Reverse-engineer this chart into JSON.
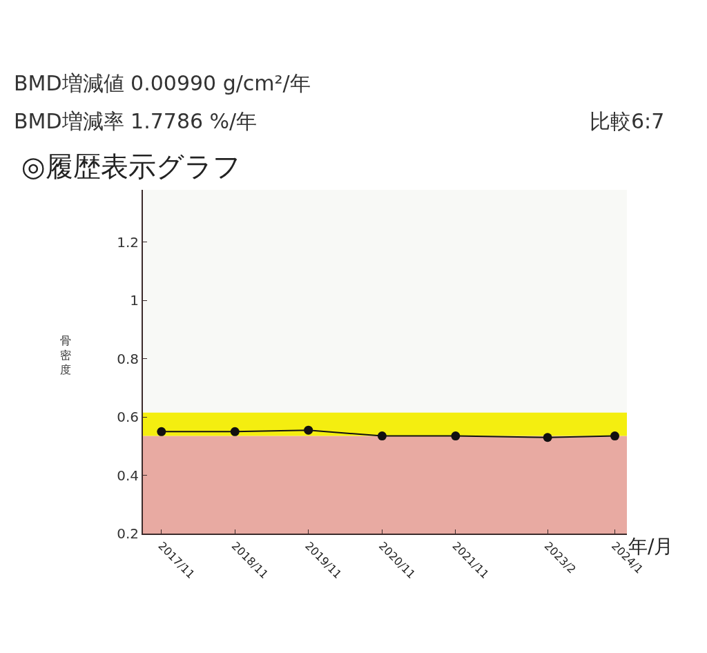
{
  "chart_data": {
    "type": "line",
    "title": "◎履歴表示グラフ",
    "ylabel": "骨密度",
    "xlabel": "年/月",
    "annotations": [
      "BMD増減値 0.00990 g/cm²/年",
      "BMD増減率 1.7786 %/年",
      "比較6:7"
    ],
    "x": [
      "2017-11",
      "2018-11",
      "2019-11",
      "2020-11",
      "2021-11",
      "2023-02",
      "2024-01"
    ],
    "series": [
      {
        "color": "#111111",
        "values": [
          0.55,
          0.55,
          0.555,
          0.535,
          0.535,
          0.53,
          0.535
        ]
      }
    ],
    "xlim": [
      "2017-08",
      "2024-03"
    ],
    "xticks": [
      {
        "value": "2017-11",
        "label": "2017/11"
      },
      {
        "value": "2018-11",
        "label": "2018/11"
      },
      {
        "value": "2019-11",
        "label": "2019/11"
      },
      {
        "value": "2020-11",
        "label": "2020/11"
      },
      {
        "value": "2021-11",
        "label": "2021/11"
      },
      {
        "value": "2023-02",
        "label": "2023/2"
      },
      {
        "value": "2024-01",
        "label": "2024/1"
      }
    ],
    "ylim": [
      0.2,
      1.38
    ],
    "yticks": [
      {
        "value": 0.2,
        "label": "0.2"
      },
      {
        "value": 0.4,
        "label": "0.4"
      },
      {
        "value": 0.6,
        "label": "0.6"
      },
      {
        "value": 0.8,
        "label": "0.8"
      },
      1,
      {
        "value": 1.2,
        "label": "1.2"
      }
    ],
    "bands": [
      {
        "axis": "y",
        "from": 0.2,
        "to": 0.535,
        "color": "#e8aaa2"
      },
      {
        "axis": "y",
        "from": 0.535,
        "to": 0.615,
        "color": "#f4ee10"
      }
    ],
    "grid": false,
    "marker": "circle",
    "line_style": "solid"
  }
}
